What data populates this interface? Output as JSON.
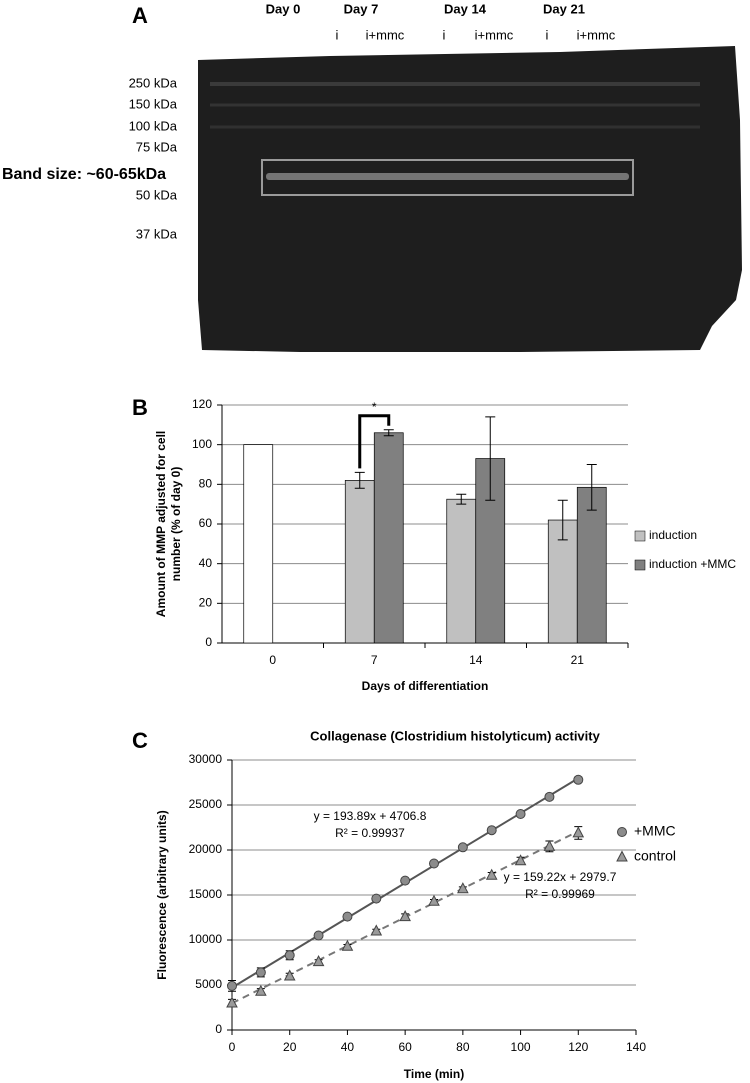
{
  "panel_a": {
    "label": "A",
    "days": [
      "Day 0",
      "Day 7",
      "Day 14",
      "Day 21"
    ],
    "lanes": [
      "i",
      "i+mmc",
      "i",
      "i+mmc",
      "i",
      "i+mmc"
    ],
    "markers": [
      "250 kDa",
      "150 kDa",
      "100 kDa",
      "75 kDa",
      "50 kDa",
      "37 kDa"
    ],
    "band_label": "Band size: ~60-65kDa"
  },
  "chart_data": [
    {
      "type": "bar",
      "panel_label": "B",
      "ylabel": [
        "Amount of MMP adjusted for cell",
        "number (% of day 0)"
      ],
      "xlabel": "Days of differentiation",
      "categories": [
        "0",
        "7",
        "14",
        "21"
      ],
      "series": [
        {
          "name": "induction",
          "color": "#c0c0c0",
          "point_colors": [
            "#ffffff",
            "#c0c0c0",
            "#c0c0c0",
            "#c0c0c0"
          ],
          "values": [
            100,
            82,
            72.5,
            62
          ],
          "errors": [
            null,
            4,
            2.5,
            10
          ]
        },
        {
          "name": "induction +MMC",
          "color": "#808080",
          "values": [
            null,
            106,
            93,
            78.5
          ],
          "errors": [
            null,
            1.5,
            21,
            11.5
          ]
        }
      ],
      "annotation": "*",
      "ylim": [
        0,
        120
      ],
      "yticks": [
        0,
        20,
        40,
        60,
        80,
        100,
        120
      ],
      "grid": true,
      "legend": "right"
    },
    {
      "type": "scatter",
      "panel_label": "C",
      "title": "Collagenase (Clostridium histolyticum) activity",
      "ylabel": "Fluorescence (arbitrary units)",
      "xlabel": "Time (min)",
      "x": [
        0,
        10,
        20,
        30,
        40,
        50,
        60,
        70,
        80,
        90,
        100,
        110,
        120
      ],
      "series": [
        {
          "name": "+MMC",
          "color": "#8c8c8c",
          "marker": "circle",
          "values": [
            4900,
            6400,
            8300,
            10500,
            12600,
            14600,
            16600,
            18500,
            20300,
            22200,
            24000,
            25900,
            27800
          ],
          "errors": [
            600,
            500,
            500,
            200,
            200,
            200,
            200,
            200,
            200,
            200,
            200,
            300,
            300
          ],
          "fit": {
            "slope": 193.89,
            "intercept": 4706.8,
            "label": "y = 193.89x + 4706.8",
            "r2_label": "R² = 0.99937",
            "color": "#555555",
            "dashed": false
          }
        },
        {
          "name": "control",
          "color": "#9a9a9a",
          "marker": "triangle",
          "values": [
            3000,
            4300,
            6000,
            7600,
            9300,
            11000,
            12600,
            14300,
            15700,
            17200,
            18800,
            20400,
            21900
          ],
          "errors": [
            400,
            300,
            300,
            200,
            200,
            200,
            300,
            200,
            200,
            300,
            400,
            600,
            700
          ],
          "fit": {
            "slope": 159.22,
            "intercept": 2979.7,
            "label": "y = 159.22x + 2979.7",
            "r2_label": "R² = 0.99969",
            "color": "#777777",
            "dashed": true
          }
        }
      ],
      "xlim": [
        0,
        140
      ],
      "xticks": [
        0,
        20,
        40,
        60,
        80,
        100,
        120,
        140
      ],
      "ylim": [
        0,
        30000
      ],
      "yticks": [
        0,
        5000,
        10000,
        15000,
        20000,
        25000,
        30000
      ],
      "grid": true,
      "legend": "right"
    }
  ]
}
